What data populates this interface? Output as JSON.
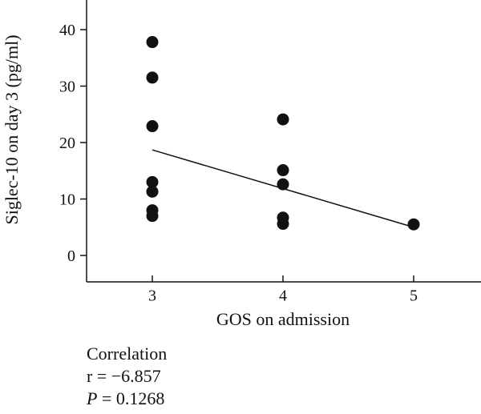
{
  "chart_data": {
    "type": "scatter",
    "xlabel": "GOS on admission",
    "ylabel": "Siglec-10 on day 3 (pg/ml)",
    "x_ticks": [
      3,
      4,
      5
    ],
    "y_ticks": [
      0,
      10,
      20,
      30,
      40
    ],
    "xlim": [
      2.5,
      5.5
    ],
    "ylim": [
      0,
      45
    ],
    "points": [
      {
        "x": 3,
        "y": 37.8
      },
      {
        "x": 3,
        "y": 31.5
      },
      {
        "x": 3,
        "y": 22.9
      },
      {
        "x": 3,
        "y": 13.0
      },
      {
        "x": 3,
        "y": 11.3
      },
      {
        "x": 3,
        "y": 8.0
      },
      {
        "x": 3,
        "y": 7.0
      },
      {
        "x": 4,
        "y": 24.1
      },
      {
        "x": 4,
        "y": 15.1
      },
      {
        "x": 4,
        "y": 12.6
      },
      {
        "x": 4,
        "y": 6.7
      },
      {
        "x": 4,
        "y": 5.6
      },
      {
        "x": 5,
        "y": 5.5
      }
    ],
    "trendline": {
      "x1": 3,
      "y1": 18.7,
      "x2": 5,
      "y2": 5.0
    },
    "grid": false,
    "legend": "none"
  },
  "stats": {
    "heading": "Correlation",
    "r_line": "r = −6.857",
    "p_symbol": "P",
    "p_value": " = 0.1268"
  }
}
